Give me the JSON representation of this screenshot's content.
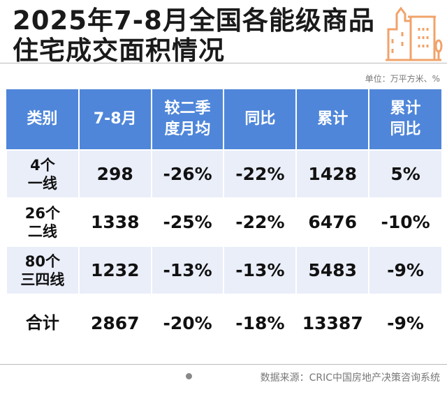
{
  "title_line1": "2025年7-8月全国各能级商品",
  "title_line2": "住宅成交面积情况",
  "unit": "单位：万平方米、%",
  "source": "数据来源：CRIC中国房地产决策咨询系统",
  "colors": {
    "header": "#4f86d9",
    "alt_row": "#eaeef9",
    "icon": "#f0a36b"
  },
  "icon": "building-icon",
  "chart_data": {
    "type": "table",
    "columns": [
      "类别",
      "7-8月",
      "较二季度月均",
      "同比",
      "累计",
      "累计同比"
    ],
    "header_lines": [
      [
        "类别"
      ],
      [
        "7-8月"
      ],
      [
        "较二季",
        "度月均"
      ],
      [
        "同比"
      ],
      [
        "累计"
      ],
      [
        "累计",
        "同比"
      ]
    ],
    "rows": [
      {
        "cat": [
          "4个",
          "一线"
        ],
        "v": [
          "298",
          "-26%",
          "-22%",
          "1428",
          "5%"
        ]
      },
      {
        "cat": [
          "26个",
          "二线"
        ],
        "v": [
          "1338",
          "-25%",
          "-22%",
          "6476",
          "-10%"
        ]
      },
      {
        "cat": [
          "80个",
          "三四线"
        ],
        "v": [
          "1232",
          "-13%",
          "-13%",
          "5483",
          "-9%"
        ]
      },
      {
        "cat": [
          "合计"
        ],
        "v": [
          "2867",
          "-20%",
          "-18%",
          "13387",
          "-9%"
        ]
      }
    ]
  }
}
